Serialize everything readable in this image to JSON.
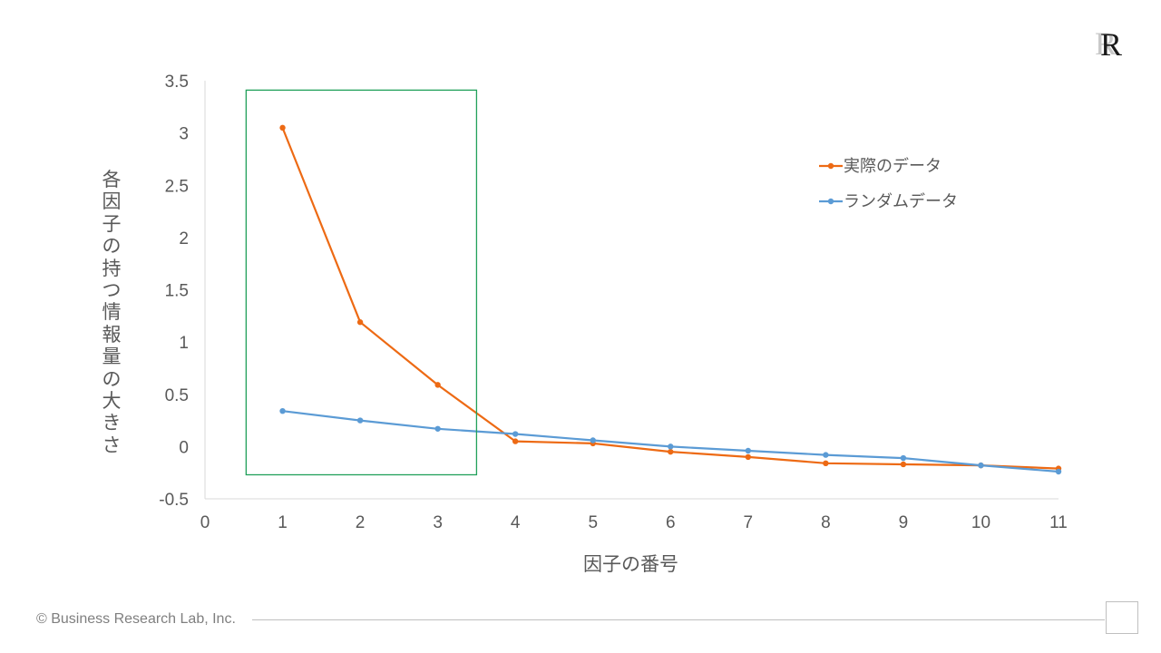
{
  "chart_data": {
    "type": "line",
    "xlabel": "因子の番号",
    "ylabel": "各因子の持つ情報量の大きさ",
    "xlim": [
      0,
      11
    ],
    "ylim": [
      -0.5,
      3.5
    ],
    "x_ticks": [
      "0",
      "1",
      "2",
      "3",
      "4",
      "5",
      "6",
      "7",
      "8",
      "9",
      "10",
      "11"
    ],
    "y_ticks": [
      "-0.5",
      "0",
      "0.5",
      "1",
      "1.5",
      "2",
      "2.5",
      "3",
      "3.5"
    ],
    "x": [
      1,
      2,
      3,
      4,
      5,
      6,
      7,
      8,
      9,
      10,
      11
    ],
    "series": [
      {
        "name": "実際のデータ",
        "color": "#ED6A14",
        "values": [
          3.05,
          1.19,
          0.59,
          0.05,
          0.03,
          -0.05,
          -0.1,
          -0.16,
          -0.17,
          -0.18,
          -0.21
        ]
      },
      {
        "name": "ランダムデータ",
        "color": "#5B9BD5",
        "values": [
          0.34,
          0.25,
          0.17,
          0.12,
          0.06,
          0.0,
          -0.04,
          -0.08,
          -0.11,
          -0.18,
          -0.24
        ]
      }
    ],
    "highlight": {
      "x_range": [
        0.53,
        3.5
      ],
      "y_range": [
        -0.27,
        3.41
      ],
      "color": "#21A05A"
    },
    "grid": false,
    "legend_position": "right"
  },
  "footer": {
    "copyright": "© Business Research Lab, Inc."
  },
  "logo": {
    "text": "R"
  }
}
